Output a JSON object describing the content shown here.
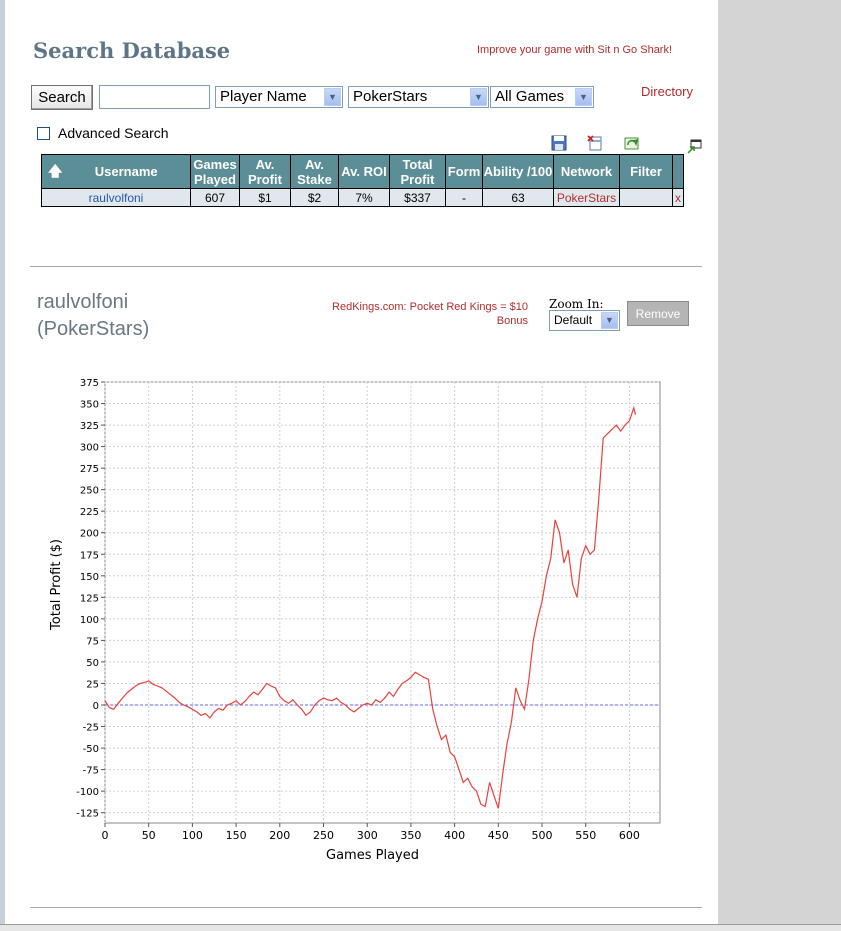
{
  "header": {
    "title": "Search Database",
    "promo": "Improve your game with Sit n Go Shark!",
    "directory_link": "Directory"
  },
  "search": {
    "button_label": "Search",
    "input_value": "",
    "field_select": "Player Name",
    "network_select": "PokerStars",
    "games_select": "All Games",
    "advanced_label": "Advanced Search"
  },
  "table": {
    "columns": [
      "Username",
      "Games Played",
      "Av. Profit",
      "Av. Stake",
      "Av. ROI",
      "Total Profit",
      "Form",
      "Ability /100",
      "Network",
      "Filter"
    ],
    "rows": [
      {
        "username": "raulvolfoni",
        "games_played": "607",
        "av_profit": "$1",
        "av_stake": "$2",
        "av_roi": "7%",
        "total_profit": "$337",
        "form": "-",
        "ability": "63",
        "network": "PokerStars",
        "filter": "",
        "remove": "x"
      }
    ]
  },
  "player": {
    "name_line1": "raulvolfoni",
    "name_line2": "(PokerStars)",
    "promo_line1": "RedKings.com: Pocket Red Kings = $10",
    "promo_line2": "Bonus",
    "zoom_label": "Zoom In:",
    "zoom_select": "Default",
    "remove_label": "Remove"
  },
  "colors": {
    "title": "#5d7587",
    "promo_red": "#b22d2d",
    "table_header": "#5b8e96",
    "table_row": "#dfe9ed",
    "line": "#e8413f",
    "zero_line": "#6a6adf"
  },
  "chart_data": {
    "type": "line",
    "xlabel": "Games Played",
    "ylabel": "Total Profit ($)",
    "xlim": [
      0,
      635
    ],
    "ylim": [
      -137,
      375
    ],
    "x_ticks": [
      0,
      50,
      100,
      150,
      200,
      250,
      300,
      350,
      400,
      450,
      500,
      550,
      600
    ],
    "y_ticks": [
      375,
      350,
      325,
      300,
      275,
      250,
      225,
      200,
      175,
      150,
      125,
      100,
      75,
      50,
      25,
      0,
      -25,
      -50,
      -75,
      -100,
      -125
    ],
    "grid": true,
    "zero_line": true,
    "series": [
      {
        "x": [
          0,
          5,
          10,
          15,
          20,
          25,
          30,
          35,
          40,
          45,
          50,
          55,
          60,
          65,
          70,
          75,
          80,
          85,
          90,
          95,
          100,
          105,
          110,
          115,
          120,
          125,
          130,
          135,
          140,
          145,
          150,
          155,
          160,
          165,
          170,
          175,
          180,
          185,
          190,
          195,
          200,
          205,
          210,
          215,
          220,
          225,
          230,
          235,
          240,
          245,
          250,
          255,
          260,
          265,
          270,
          275,
          280,
          285,
          290,
          295,
          300,
          305,
          310,
          315,
          320,
          325,
          330,
          335,
          340,
          345,
          350,
          355,
          360,
          365,
          370,
          375,
          380,
          385,
          390,
          395,
          400,
          405,
          410,
          415,
          420,
          425,
          430,
          435,
          440,
          445,
          450,
          455,
          460,
          465,
          470,
          475,
          480,
          485,
          490,
          495,
          500,
          505,
          510,
          515,
          520,
          525,
          530,
          535,
          540,
          545,
          550,
          555,
          560,
          565,
          570,
          575,
          580,
          585,
          590,
          595,
          600,
          605,
          607
        ],
        "y": [
          5,
          -3,
          -5,
          2,
          8,
          14,
          18,
          22,
          25,
          26,
          28,
          24,
          22,
          20,
          16,
          12,
          8,
          3,
          0,
          -2,
          -5,
          -8,
          -12,
          -10,
          -15,
          -8,
          -4,
          -6,
          0,
          2,
          5,
          0,
          4,
          10,
          15,
          12,
          18,
          25,
          22,
          20,
          10,
          5,
          2,
          6,
          0,
          -5,
          -12,
          -8,
          0,
          5,
          8,
          6,
          5,
          8,
          3,
          0,
          -5,
          -8,
          -4,
          0,
          2,
          0,
          6,
          3,
          8,
          15,
          10,
          18,
          25,
          28,
          32,
          38,
          35,
          32,
          30,
          -5,
          -25,
          -40,
          -35,
          -55,
          -60,
          -75,
          -90,
          -85,
          -95,
          -100,
          -115,
          -118,
          -90,
          -105,
          -120,
          -80,
          -45,
          -20,
          20,
          5,
          -5,
          30,
          75,
          100,
          120,
          150,
          170,
          215,
          200,
          165,
          180,
          140,
          125,
          170,
          185,
          175,
          180,
          240,
          310,
          315,
          320,
          325,
          318,
          325,
          330,
          345,
          337
        ]
      }
    ]
  }
}
